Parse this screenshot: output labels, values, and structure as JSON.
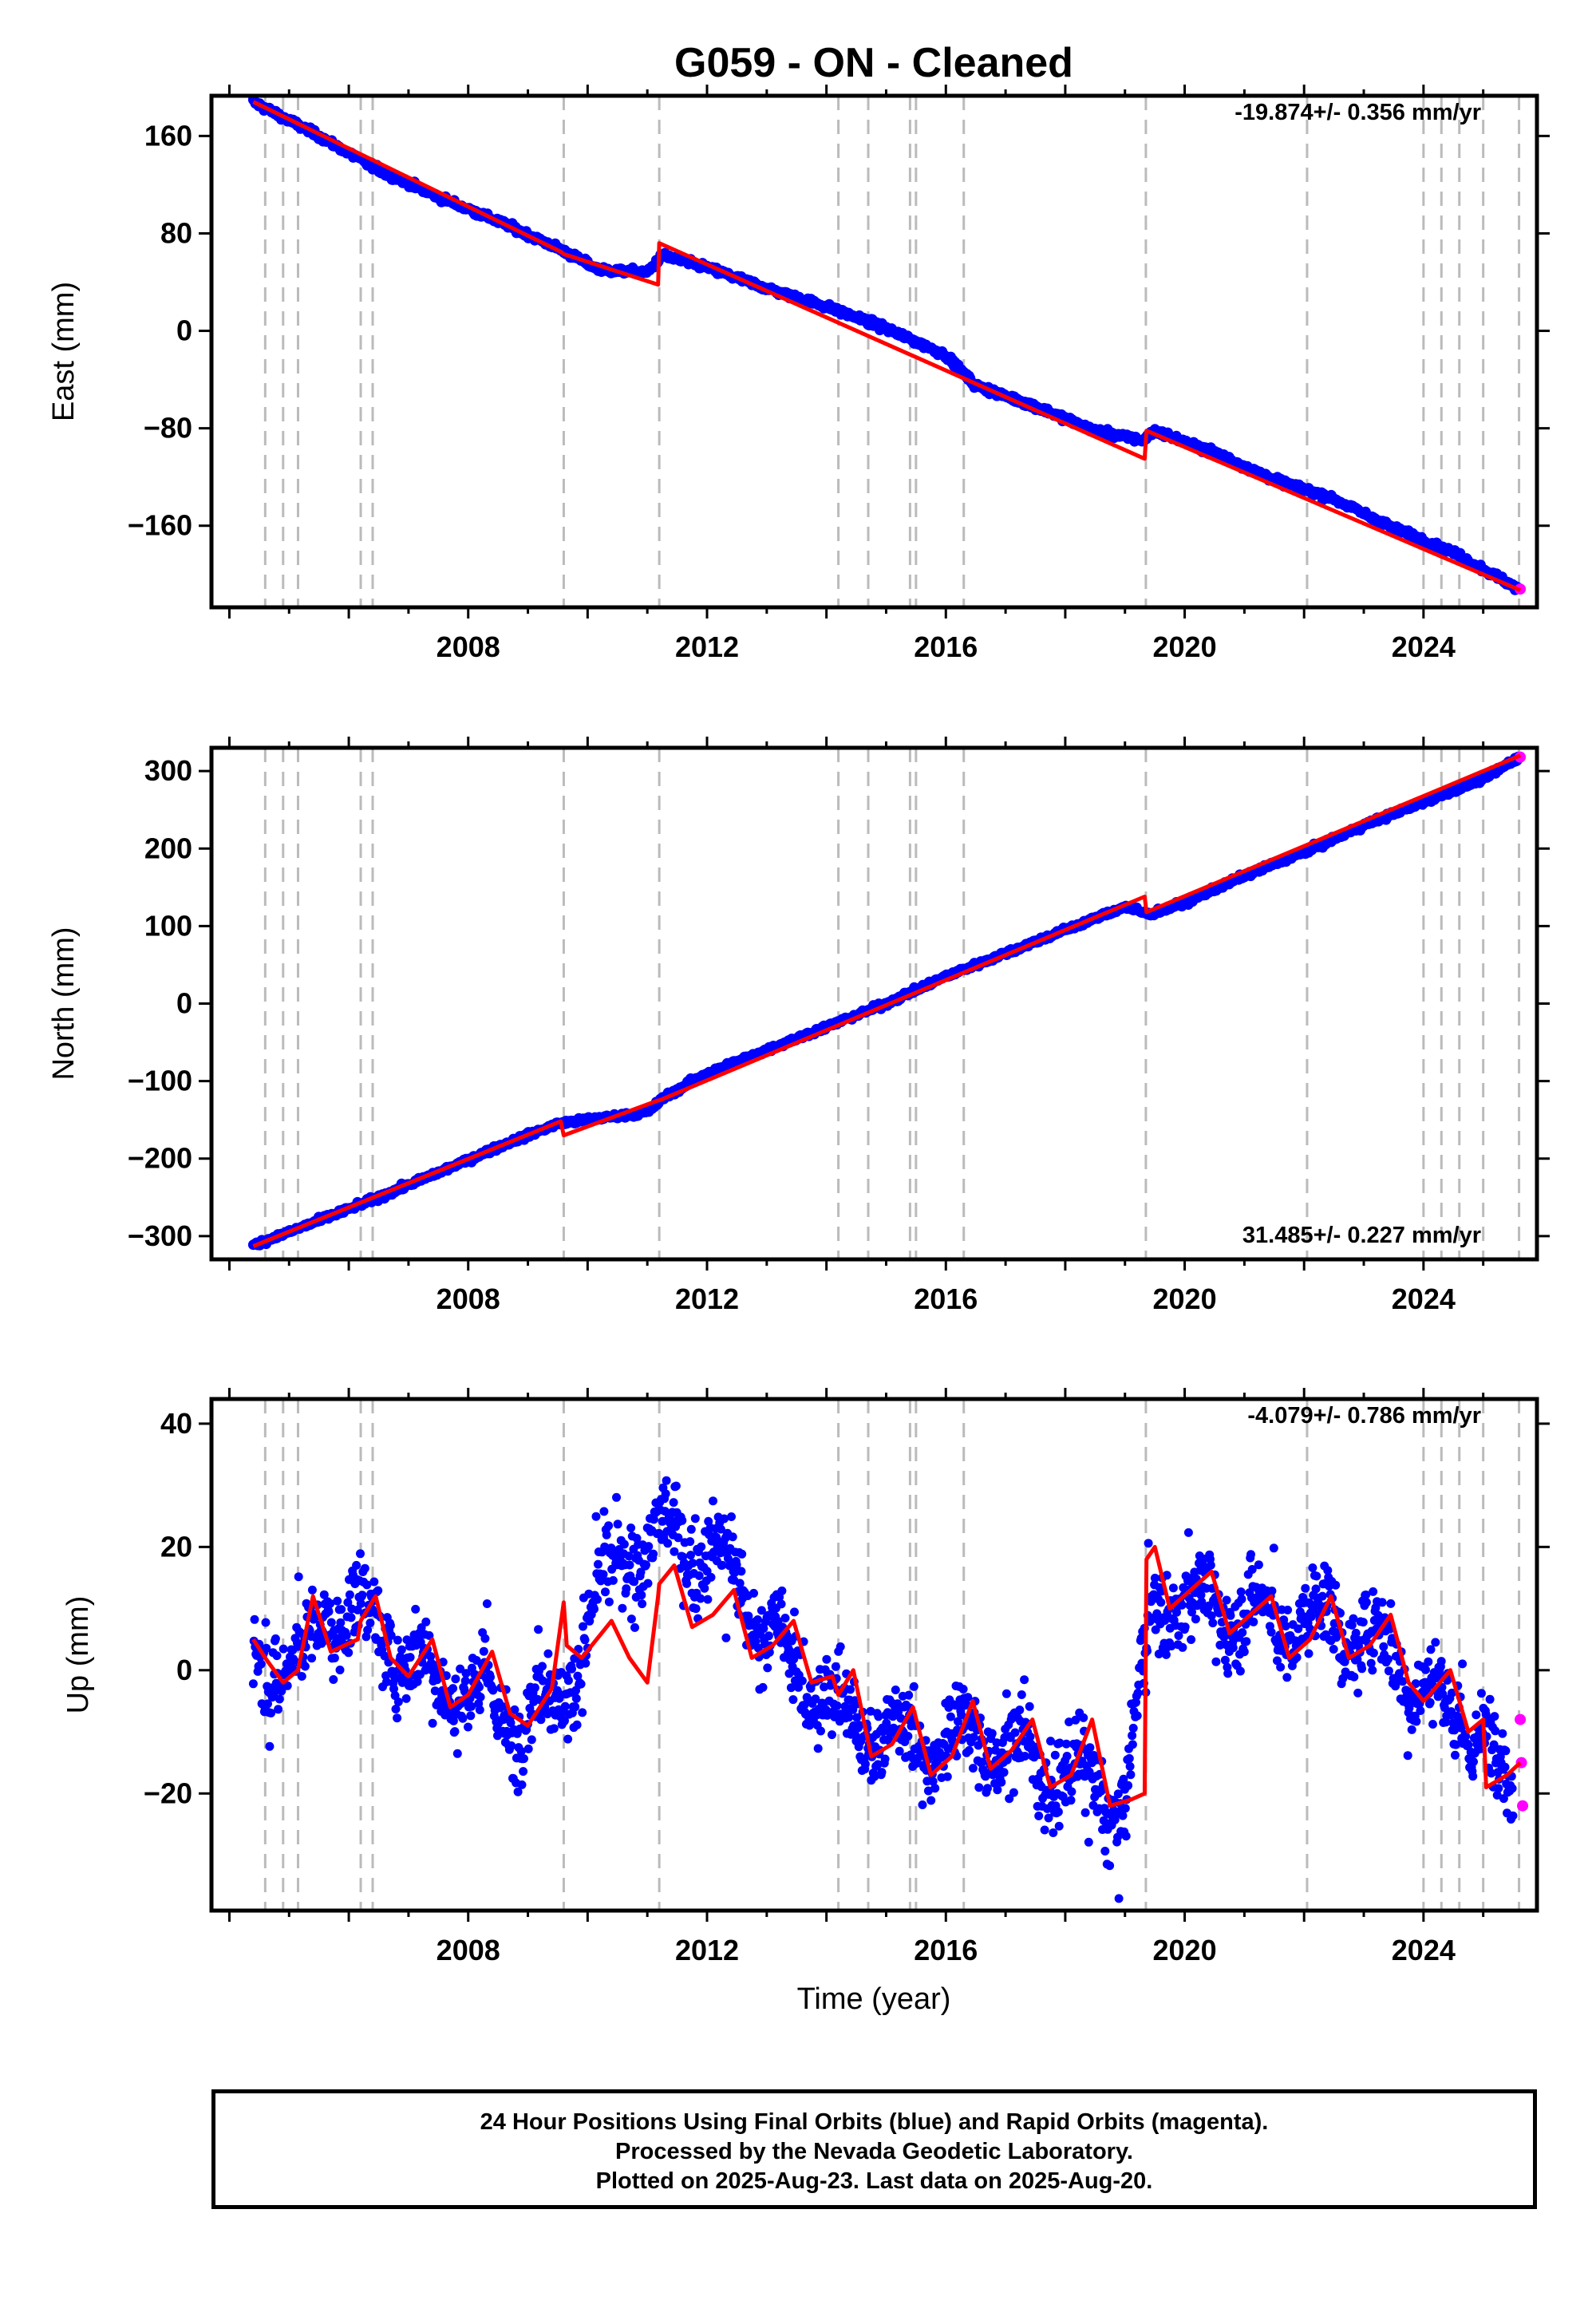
{
  "title": "G059  - ON - Cleaned",
  "xlabel": "Time (year)",
  "caption": [
    "24 Hour Positions Using Final Orbits (blue) and Rapid Orbits (magenta).",
    "Processed by the Nevada Geodetic Laboratory.",
    "Plotted on 2025-Aug-23. Last data on 2025-Aug-20."
  ],
  "colors": {
    "final": "#0000ff",
    "rapid": "#ff00ff",
    "model": "#ff0000",
    "events": "#bbbbbb"
  },
  "event_lines": [
    2004.6,
    2004.9,
    2005.15,
    2006.2,
    2006.4,
    2009.6,
    2011.2,
    2014.2,
    2014.7,
    2015.4,
    2015.5,
    2016.3,
    2019.35,
    2022.05,
    2024.0,
    2024.3,
    2024.6,
    2025.0,
    2025.6
  ],
  "chart_data": [
    {
      "type": "scatter",
      "panel": "east",
      "ylabel": "East (mm)",
      "rate_text": "-19.874+/- 0.356 mm/yr",
      "xlim": [
        2003.7,
        2025.9
      ],
      "ylim": [
        -227,
        193
      ],
      "xticks": [
        2008,
        2012,
        2016,
        2020,
        2024
      ],
      "yticks": [
        -160,
        -80,
        0,
        80,
        160
      ],
      "series": [
        {
          "name": "Final Orbits (blue)",
          "x": [
            2004.4,
            2005.5,
            2006.5,
            2007.5,
            2008.5,
            2009.5,
            2010.2,
            2011.0,
            2011.25,
            2012.0,
            2013.0,
            2014.0,
            2015.0,
            2016.0,
            2016.5,
            2017.5,
            2018.5,
            2019.3,
            2019.5,
            2020.5,
            2021.5,
            2022.5,
            2023.5,
            2024.5,
            2025.6
          ],
          "y": [
            188,
            160,
            132,
            110,
            90,
            68,
            50,
            48,
            62,
            52,
            35,
            20,
            2,
            -20,
            -45,
            -62,
            -82,
            -90,
            -82,
            -100,
            -122,
            -138,
            -162,
            -182,
            -212
          ]
        },
        {
          "name": "Rapid Orbits (magenta)",
          "x": [
            2025.62
          ],
          "y": [
            -212
          ]
        },
        {
          "name": "Model",
          "x": [
            2004.4,
            2009.55,
            2009.6,
            2011.18,
            2011.2,
            2019.33,
            2019.36,
            2025.62
          ],
          "y": [
            188,
            65,
            63,
            38,
            72,
            -105,
            -82,
            -213
          ]
        }
      ]
    },
    {
      "type": "scatter",
      "panel": "north",
      "ylabel": "North (mm)",
      "rate_text": "31.485+/- 0.227 mm/yr",
      "xlim": [
        2003.7,
        2025.9
      ],
      "ylim": [
        -330,
        330
      ],
      "xticks": [
        2008,
        2012,
        2016,
        2020,
        2024
      ],
      "yticks": [
        -300,
        -200,
        -100,
        0,
        100,
        200,
        300
      ],
      "series": [
        {
          "name": "Final Orbits (blue)",
          "x": [
            2004.4,
            2005.5,
            2006.5,
            2007.5,
            2008.5,
            2009.5,
            2010.0,
            2011.0,
            2011.3,
            2012.0,
            2013.0,
            2014.0,
            2015.0,
            2016.0,
            2017.0,
            2018.0,
            2019.0,
            2019.4,
            2020.0,
            2021.0,
            2022.0,
            2023.0,
            2024.0,
            2025.0,
            2025.6
          ],
          "y": [
            -312,
            -280,
            -250,
            -218,
            -185,
            -155,
            -150,
            -140,
            -120,
            -90,
            -60,
            -30,
            0,
            35,
            65,
            95,
            125,
            115,
            130,
            165,
            195,
            230,
            260,
            290,
            318
          ]
        },
        {
          "name": "Rapid Orbits (magenta)",
          "x": [
            2025.62
          ],
          "y": [
            318
          ]
        },
        {
          "name": "Model",
          "x": [
            2004.4,
            2009.55,
            2009.6,
            2011.18,
            2011.2,
            2019.33,
            2019.36,
            2025.62
          ],
          "y": [
            -313,
            -152,
            -170,
            -125,
            -125,
            138,
            118,
            320
          ]
        }
      ]
    },
    {
      "type": "scatter",
      "panel": "up",
      "ylabel": "Up (mm)",
      "rate_text": "-4.079+/- 0.786 mm/yr",
      "xlim": [
        2003.7,
        2025.9
      ],
      "ylim": [
        -39,
        44
      ],
      "xticks": [
        2008,
        2012,
        2016,
        2020,
        2024
      ],
      "yticks": [
        -20,
        0,
        20,
        40
      ],
      "series": [
        {
          "name": "Final Orbits (blue)",
          "x": [
            2004.4,
            2005.2,
            2005.6,
            2006.4,
            2007.2,
            2008.0,
            2008.8,
            2009.5,
            2010.5,
            2011.5,
            2012.5,
            2013.2,
            2014.0,
            2014.8,
            2015.6,
            2016.5,
            2017.3,
            2018.2,
            2019.0,
            2019.5,
            2020.5,
            2021.5,
            2022.5,
            2023.5,
            2024.2,
            2025.0,
            2025.5
          ],
          "y": [
            3,
            0,
            10,
            8,
            0,
            -3,
            -8,
            -5,
            18,
            22,
            15,
            3,
            -5,
            -10,
            -12,
            -10,
            -14,
            -18,
            -22,
            12,
            10,
            8,
            8,
            3,
            -5,
            -10,
            -22
          ]
        },
        {
          "name": "Rapid Orbits (magenta)",
          "x": [
            2025.62,
            2025.64,
            2025.66
          ],
          "y": [
            -8,
            -15,
            -22
          ]
        },
        {
          "name": "Model",
          "x": [
            2004.4,
            2004.6,
            2004.9,
            2005.15,
            2005.4,
            2005.7,
            2006.15,
            2006.2,
            2006.45,
            2006.7,
            2007.0,
            2007.4,
            2007.7,
            2008.0,
            2008.4,
            2008.7,
            2009.0,
            2009.4,
            2009.6,
            2009.65,
            2009.9,
            2010.4,
            2010.7,
            2011.0,
            2011.18,
            2011.2,
            2011.45,
            2011.75,
            2012.1,
            2012.45,
            2012.75,
            2013.1,
            2013.45,
            2013.75,
            2014.1,
            2014.2,
            2014.45,
            2014.75,
            2015.1,
            2015.45,
            2015.75,
            2016.1,
            2016.45,
            2016.75,
            2017.1,
            2017.45,
            2017.75,
            2018.1,
            2018.45,
            2018.75,
            2019.1,
            2019.33,
            2019.36,
            2019.5,
            2019.75,
            2020.1,
            2020.45,
            2020.75,
            2021.1,
            2021.45,
            2021.75,
            2022.1,
            2022.45,
            2022.75,
            2023.1,
            2023.45,
            2023.75,
            2024.0,
            2024.1,
            2024.45,
            2024.75,
            2025.0,
            2025.05,
            2025.4,
            2025.62
          ],
          "y": [
            5,
            2,
            -2,
            0,
            12,
            3,
            5,
            8,
            12,
            2,
            -1,
            5,
            -6,
            -4,
            3,
            -7,
            -9,
            -3,
            11,
            4,
            2,
            8,
            2,
            -2,
            12,
            14,
            17,
            7,
            9,
            13,
            2,
            4,
            8,
            -2,
            -1,
            -4,
            0,
            -14,
            -12,
            -6,
            -17,
            -14,
            -5,
            -16,
            -13,
            -8,
            -19,
            -17,
            -8,
            -22,
            -21,
            -20,
            18,
            20,
            10,
            13,
            16,
            6,
            9,
            12,
            2,
            5,
            12,
            2,
            4,
            9,
            -2,
            -5,
            -4,
            0,
            -10,
            -8,
            -19,
            -17,
            -15
          ]
        }
      ]
    }
  ]
}
